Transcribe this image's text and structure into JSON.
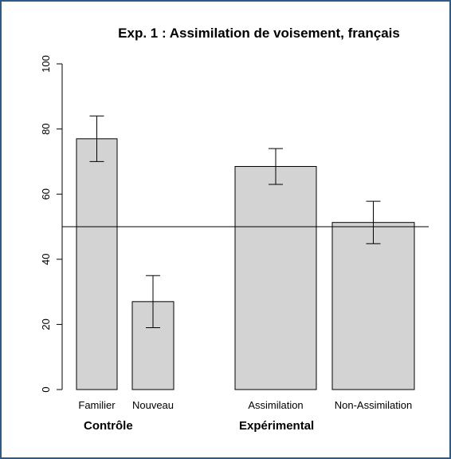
{
  "chart_data": {
    "type": "bar",
    "title": "Exp. 1 : Assimilation de voisement, français",
    "categories": [
      "Familier",
      "Nouveau",
      "Assimilation",
      "Non-Assimilation"
    ],
    "values": [
      77,
      27,
      68.5,
      51.3
    ],
    "errors": [
      7,
      8,
      5.5,
      6.5
    ],
    "group_labels": [
      "Contrôle",
      "Expérimental"
    ],
    "color": "#d3d3d3",
    "hline": 50,
    "ylim": [
      0,
      100
    ],
    "yticks": [
      0,
      20,
      40,
      60,
      80,
      100
    ]
  }
}
